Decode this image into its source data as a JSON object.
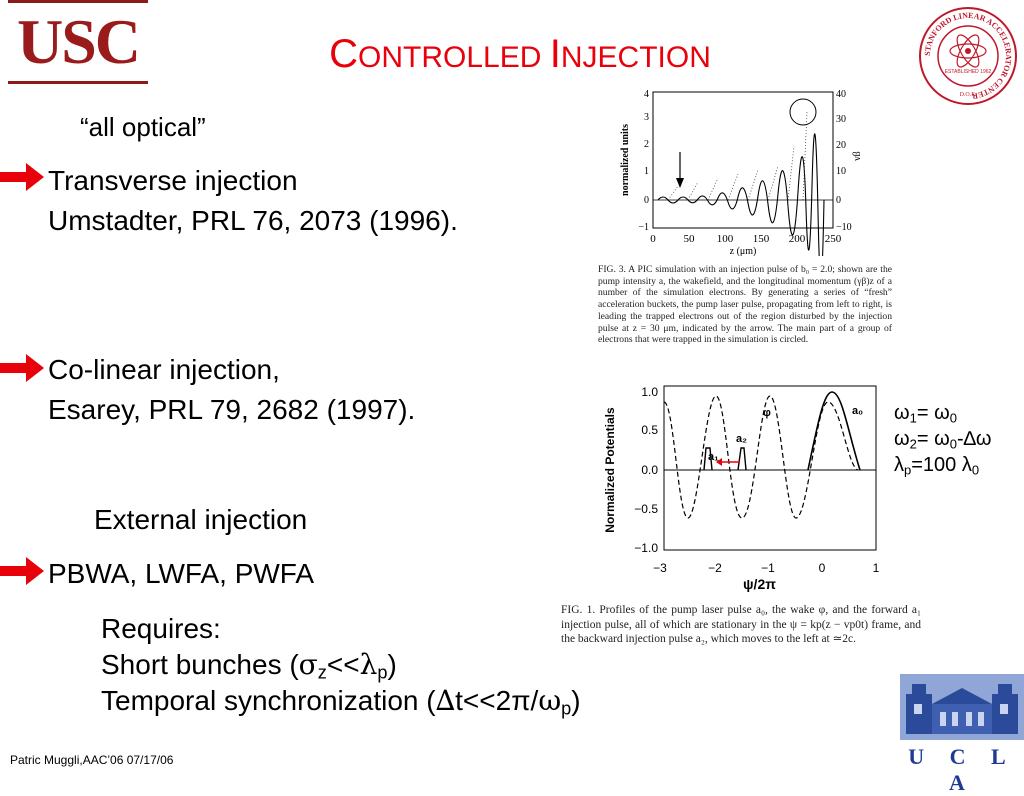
{
  "logos": {
    "usc": "USC",
    "ucla": "U C L A",
    "slac_ring": "STANFORD LINEAR ACCELERATOR CENTER",
    "slac_established": "ESTABLISHED 1962",
    "slac_doe": "D.O.E."
  },
  "title": {
    "first_c": "C",
    "rest1": "ONTROLLED ",
    "first_i": "I",
    "rest2": "NJECTION"
  },
  "sections": {
    "all_optical": "“all optical”",
    "transverse_1": "Transverse injection",
    "transverse_2": "Umstadter, PRL 76, 2073 (1996).",
    "colinear_1": "Co-linear injection,",
    "colinear_2": "Esarey, PRL 79, 2682 (1997).",
    "external": "External injection",
    "pbwa": "PBWA, LWFA, PWFA"
  },
  "requires": {
    "heading": "Requires:",
    "short_bunches_pre": "Short bunches (",
    "short_bunches_sigma": "σ",
    "short_bunches_z": "z",
    "short_bunches_mid": "<<",
    "short_bunches_lambda": "λ",
    "short_bunches_p": "p",
    "short_bunches_post": ")",
    "temporal_pre": "Temporal synchronization (",
    "temporal_delta": "∆",
    "temporal_mid": "t<<2π/",
    "temporal_omega": "ω",
    "temporal_p": "p",
    "temporal_post": ")"
  },
  "omega_block": {
    "l1_a": "ω",
    "l1_a_sub": "1",
    "l1_b": "= ",
    "l1_c": "ω",
    "l1_c_sub": "0",
    "l2_a": "ω",
    "l2_a_sub": "2",
    "l2_b": "= ",
    "l2_c": "ω",
    "l2_c_sub": "0",
    "l2_d": "-∆ω",
    "l3_a": "λ",
    "l3_a_sub": "p",
    "l3_b": "=100 ",
    "l3_c": "λ",
    "l3_c_sub": "0"
  },
  "fig3": {
    "ylabel": "normalized units",
    "y2label": "γβ",
    "xlabel": "z (μm)",
    "xticks": [
      "0",
      "50",
      "100",
      "150",
      "200",
      "250"
    ],
    "yticks_left": [
      "4",
      "3",
      "2",
      "1",
      "0",
      "−1"
    ],
    "yticks_right": [
      "40",
      "30",
      "20",
      "10",
      "0",
      "−10"
    ],
    "caption": "FIG. 3.  A PIC simulation with an injection pulse of b₀ = 2.0; shown are the pump intensity a, the wakefield, and the longitudinal momentum (γβ)z of a number of the simulation electrons. By generating a series of “fresh” acceleration buckets, the pump laser pulse, propagating from left to right, is leading the trapped electrons out of the region disturbed by the injection pulse at z = 30 μm, indicated by the arrow. The main part of a group of electrons that were trapped in the simulation is circled."
  },
  "fig1": {
    "ylabel": "Normalized Potentials",
    "xlabel": "ψ/2π",
    "xticks": [
      "−3",
      "−2",
      "−1",
      "0",
      "1"
    ],
    "yticks": [
      "1.0",
      "0.5",
      "0.0",
      "−0.5",
      "−1.0"
    ],
    "labels": {
      "a0": "a₀",
      "a1": "a₁",
      "a2": "a₂",
      "phi": "φ"
    },
    "caption": "FIG. 1.  Profiles of the pump laser pulse a₀, the wake φ, and the forward a₁ injection pulse, all of which are stationary in the ψ = kp(z − vp0t) frame, and the backward injection pulse a₂, which moves to the left at ≃2c."
  },
  "footer": "Patric Muggli,AAC’06 07/17/06",
  "colors": {
    "title": "#e8000b",
    "arrow": "#e8000b",
    "usc": "#9a1b1b",
    "ucla": "#1f3a93"
  }
}
